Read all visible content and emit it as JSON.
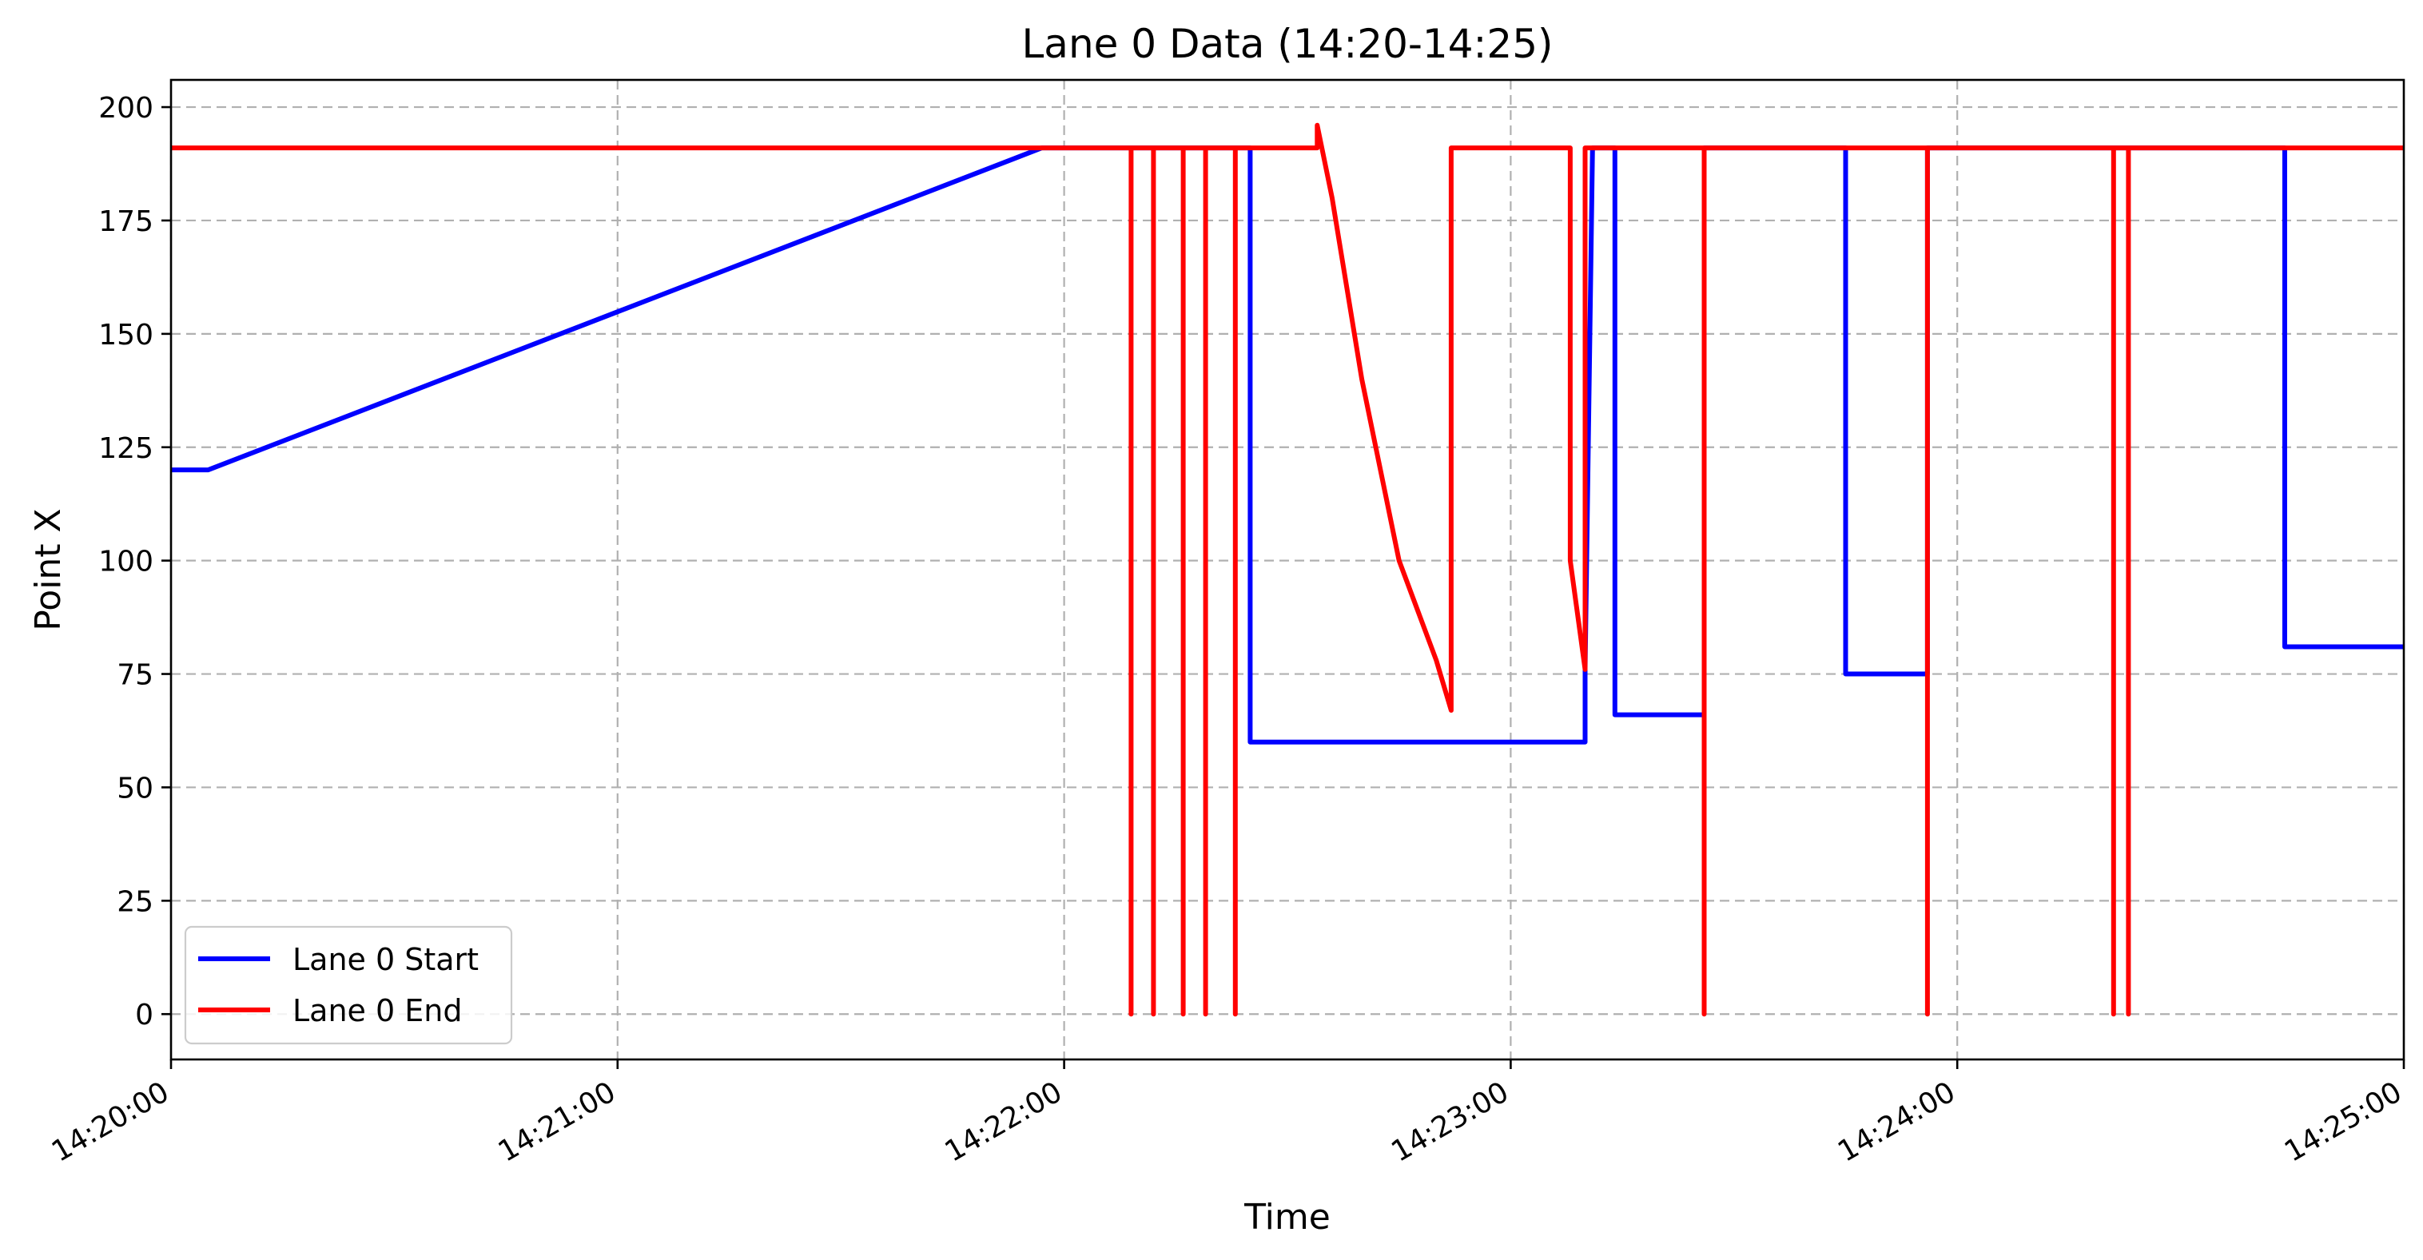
{
  "chart_data": {
    "type": "line",
    "title": "Lane 0 Data (14:20-14:25)",
    "xlabel": "Time",
    "ylabel": "Point X",
    "xlim": [
      "14:20:00",
      "14:25:00"
    ],
    "ylim": [
      -10,
      206
    ],
    "x_ticks": [
      "14:20:00",
      "14:21:00",
      "14:22:00",
      "14:23:00",
      "14:24:00",
      "14:25:00"
    ],
    "y_ticks": [
      0,
      25,
      50,
      75,
      100,
      125,
      150,
      175,
      200
    ],
    "grid": true,
    "legend_position": "lower-left",
    "series": [
      {
        "name": "Lane 0 Start",
        "color": "#0000ff",
        "points": [
          [
            "14:20:00",
            120
          ],
          [
            "14:20:05",
            120
          ],
          [
            "14:21:57",
            191
          ],
          [
            "14:22:25",
            191
          ],
          [
            "14:22:25",
            60
          ],
          [
            "14:23:10",
            60
          ],
          [
            "14:23:10",
            76
          ],
          [
            "14:23:11",
            191
          ],
          [
            "14:23:14",
            191
          ],
          [
            "14:23:14",
            66
          ],
          [
            "14:23:26",
            66
          ],
          [
            "14:23:26",
            191
          ],
          [
            "14:23:45",
            191
          ],
          [
            "14:23:45",
            75
          ],
          [
            "14:23:56",
            75
          ],
          [
            "14:23:56",
            191
          ],
          [
            "14:24:44",
            191
          ],
          [
            "14:24:44",
            81
          ],
          [
            "14:25:00",
            81
          ]
        ]
      },
      {
        "name": "Lane 0 End",
        "color": "#ff0000",
        "points": [
          [
            "14:20:00",
            191
          ],
          [
            "14:22:09",
            191
          ],
          [
            "14:22:09",
            0
          ],
          [
            "14:22:09",
            191
          ],
          [
            "14:22:12",
            191
          ],
          [
            "14:22:12",
            0
          ],
          [
            "14:22:12",
            191
          ],
          [
            "14:22:16",
            191
          ],
          [
            "14:22:16",
            0
          ],
          [
            "14:22:16",
            191
          ],
          [
            "14:22:19",
            191
          ],
          [
            "14:22:19",
            0
          ],
          [
            "14:22:19",
            191
          ],
          [
            "14:22:23",
            191
          ],
          [
            "14:22:23",
            0
          ],
          [
            "14:22:23",
            191
          ],
          [
            "14:22:34",
            191
          ],
          [
            "14:22:34",
            196
          ],
          [
            "14:22:36",
            180
          ],
          [
            "14:22:40",
            140
          ],
          [
            "14:22:45",
            100
          ],
          [
            "14:22:50",
            78
          ],
          [
            "14:22:52",
            67
          ],
          [
            "14:22:52",
            191
          ],
          [
            "14:23:08",
            191
          ],
          [
            "14:23:08",
            100
          ],
          [
            "14:23:10",
            76
          ],
          [
            "14:23:10",
            191
          ],
          [
            "14:23:26",
            191
          ],
          [
            "14:23:26",
            0
          ],
          [
            "14:23:26",
            191
          ],
          [
            "14:23:56",
            191
          ],
          [
            "14:23:56",
            0
          ],
          [
            "14:23:56",
            191
          ],
          [
            "14:24:21",
            191
          ],
          [
            "14:24:21",
            0
          ],
          [
            "14:24:21",
            191
          ],
          [
            "14:24:23",
            191
          ],
          [
            "14:24:23",
            0
          ],
          [
            "14:24:23",
            191
          ],
          [
            "14:25:00",
            191
          ]
        ]
      }
    ]
  }
}
